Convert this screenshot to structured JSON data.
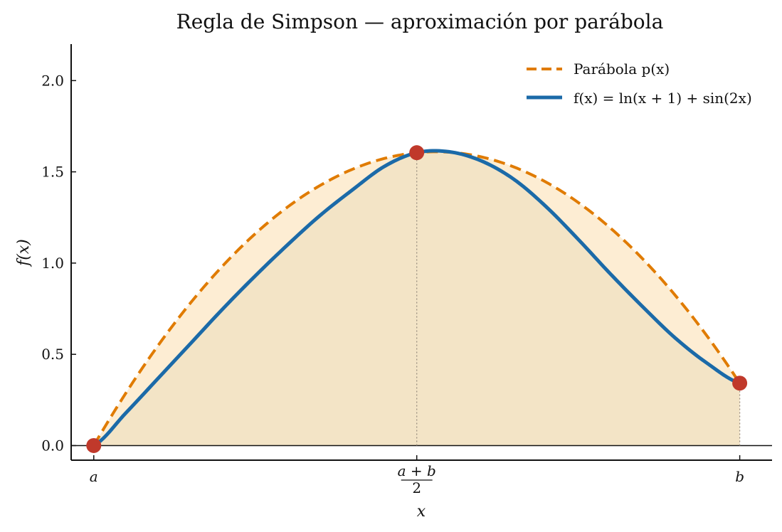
{
  "chart_data": {
    "type": "line",
    "title": "Regla de Simpson — aproximación por parábola",
    "xlabel": "x",
    "ylabel": "f(x)",
    "xlim": [
      -0.035,
      1.05
    ],
    "ylim": [
      -0.08,
      2.2
    ],
    "yticks": [
      0.0,
      0.5,
      1.0,
      1.5,
      2.0
    ],
    "ytick_labels": [
      "0.0",
      "0.5",
      "1.0",
      "1.5",
      "2.0"
    ],
    "xticks": [
      {
        "value": 0.0,
        "label": "a"
      },
      {
        "value": 0.5,
        "label_numerator": "a + b",
        "label_denominator": "2"
      },
      {
        "value": 1.0,
        "label": "b"
      }
    ],
    "grid": false,
    "legend_position": "top-right",
    "series": [
      {
        "name": "Parábola p(x)",
        "style": "dashed",
        "color": "#e07b00",
        "x": [
          0,
          0.5,
          1.0
        ],
        "y": [
          0.0,
          1.605,
          0.342
        ]
      },
      {
        "name": "f(x) = ln(x + 1) + sin(2x)",
        "style": "solid",
        "color": "#1b6aa8",
        "x": [
          0.0,
          0.05,
          0.1,
          0.15,
          0.2,
          0.25,
          0.3,
          0.35,
          0.4,
          0.45,
          0.5,
          0.55,
          0.6,
          0.65,
          0.7,
          0.75,
          0.8,
          0.85,
          0.9,
          0.95,
          1.0
        ],
        "y": [
          0.0,
          0.18,
          0.37,
          0.56,
          0.75,
          0.93,
          1.1,
          1.26,
          1.4,
          1.53,
          1.605,
          1.61,
          1.56,
          1.46,
          1.31,
          1.13,
          0.94,
          0.76,
          0.59,
          0.45,
          0.342
        ]
      }
    ],
    "nodes": [
      {
        "x": 0.0,
        "y": 0.0
      },
      {
        "x": 0.5,
        "y": 1.605
      },
      {
        "x": 1.0,
        "y": 0.342
      }
    ],
    "colors": {
      "parabola": "#e07b00",
      "function": "#1b6aa8",
      "nodes": "#c0392b",
      "fill_between": "#f3e4c6",
      "fill_function": "#d9ecf8",
      "fill_parabola": "#fde9c8"
    }
  }
}
